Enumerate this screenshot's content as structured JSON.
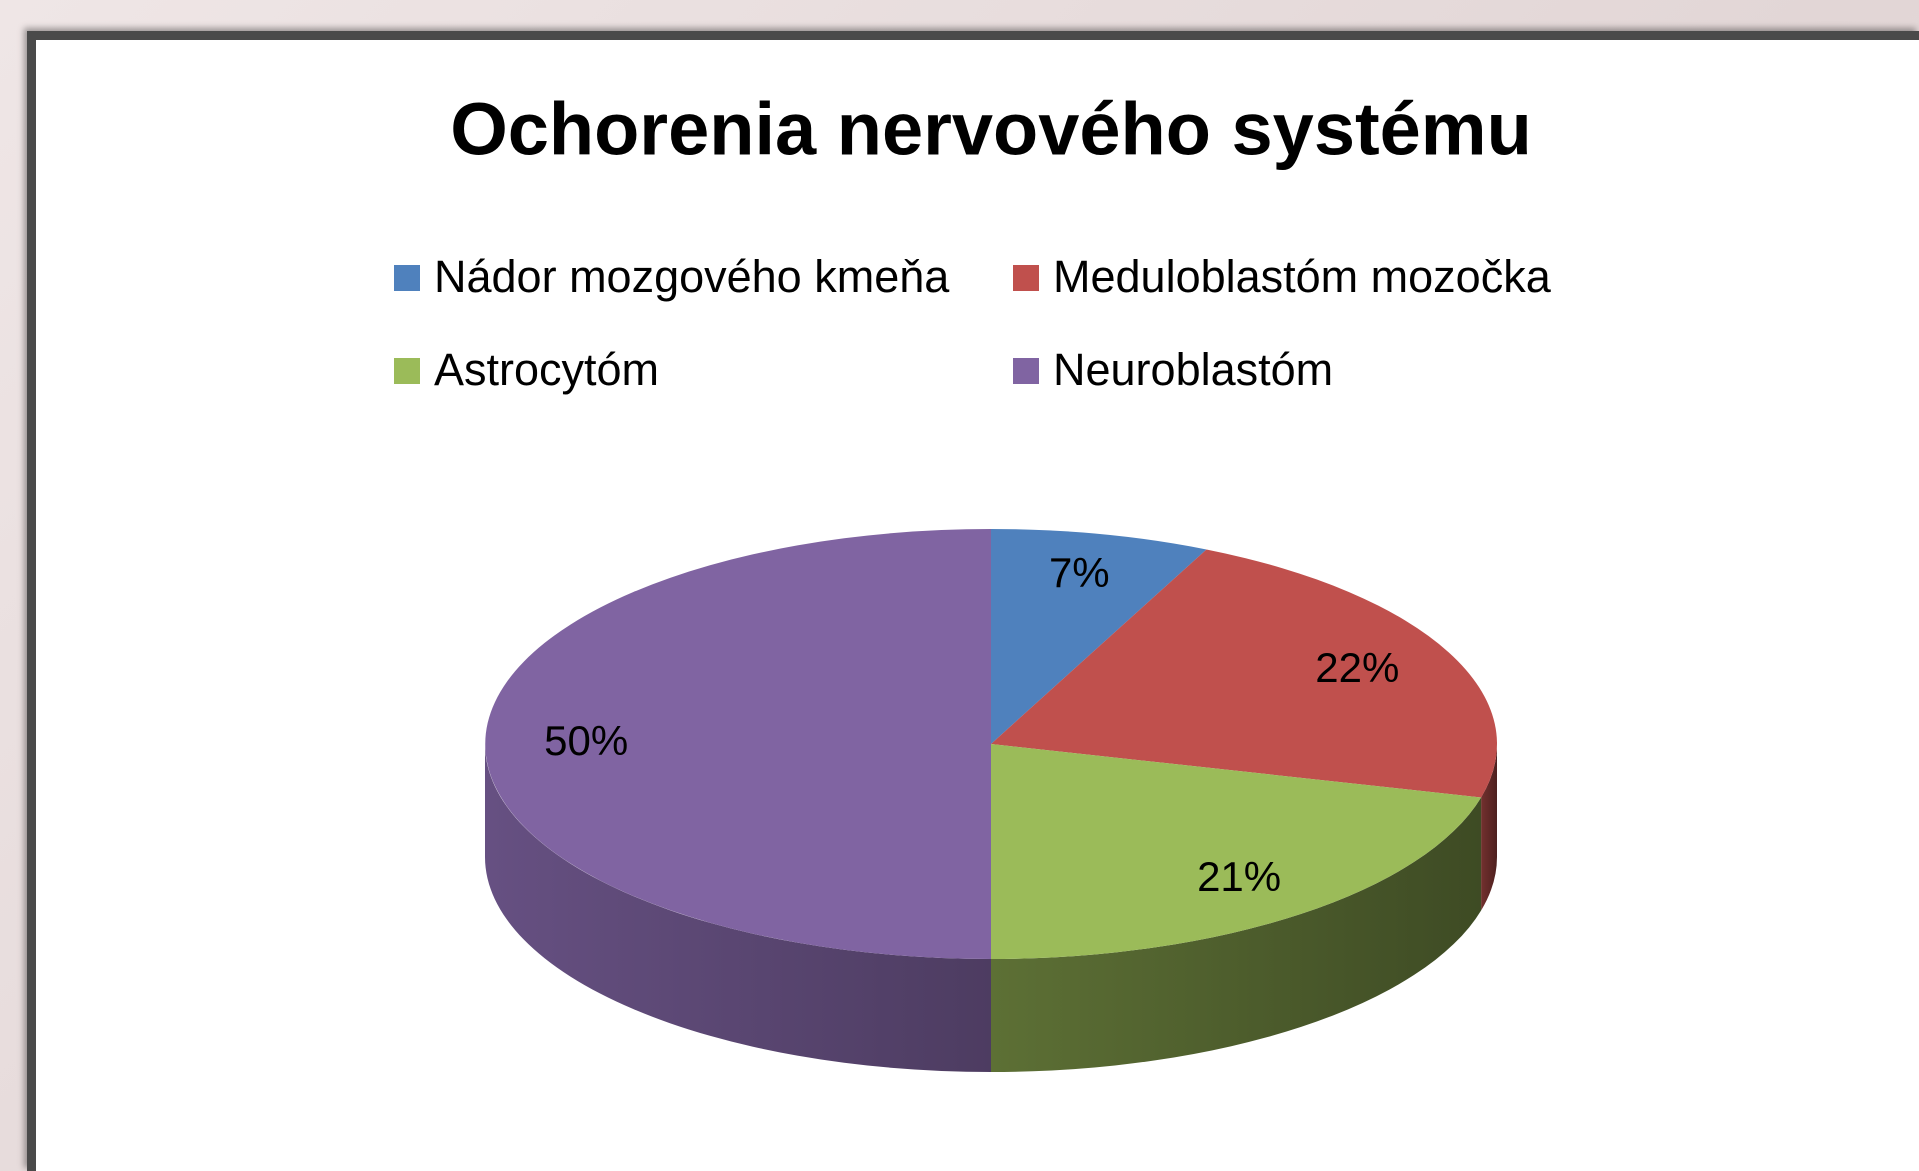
{
  "chart_data": {
    "type": "pie",
    "title": "Ochorenia nervového systému",
    "categories": [
      "Nádor mozgového kmeňa",
      "Meduloblastóm mozočka",
      "Astrocytóm",
      "Neuroblastóm"
    ],
    "values": [
      7,
      22,
      21,
      50
    ],
    "value_labels": [
      "7%",
      "22%",
      "21%",
      "50%"
    ],
    "colors": [
      "#4f81bd",
      "#c0504d",
      "#9bbb59",
      "#8064a2"
    ],
    "legend": "top"
  }
}
